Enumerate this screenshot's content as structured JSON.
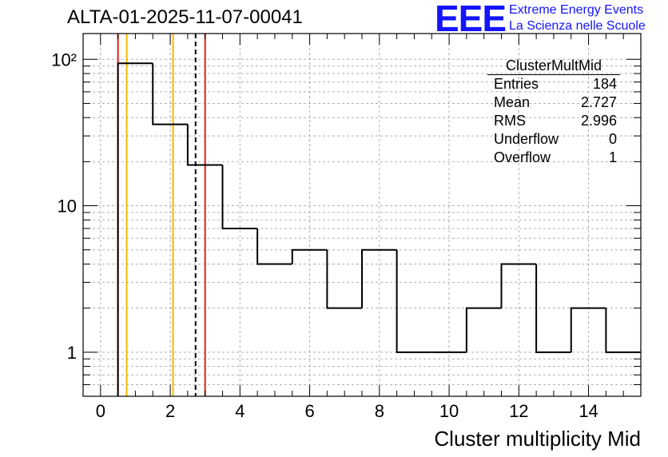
{
  "header": {
    "title": "ALTA-01-2025-11-07-00041",
    "logo_text": "EEE",
    "logo_line1": "Extreme Energy Events",
    "logo_line2": "La Scienza nelle Scuole"
  },
  "stats": {
    "name": "ClusterMultMid",
    "rows": [
      {
        "label": "Entries",
        "value": "184"
      },
      {
        "label": "Mean",
        "value": "2.727"
      },
      {
        "label": "RMS",
        "value": "2.996"
      },
      {
        "label": "Underflow",
        "value": "0"
      },
      {
        "label": "Overflow",
        "value": "1"
      }
    ]
  },
  "chart_data": {
    "type": "histogram",
    "title": "ALTA-01-2025-11-07-00041",
    "xlabel": "Cluster multiplicity Mid",
    "ylabel": "",
    "yscale": "log",
    "xlim": [
      -0.5,
      15.5
    ],
    "ylim": [
      0.5,
      150
    ],
    "grid": true,
    "bin_edges": [
      0.5,
      1.5,
      2.5,
      3.5,
      4.5,
      5.5,
      6.5,
      7.5,
      8.5,
      9.5,
      10.5,
      11.5,
      12.5,
      13.5,
      14.5,
      15.5
    ],
    "counts": [
      94,
      36,
      19,
      7,
      4,
      5,
      2,
      5,
      1,
      1,
      2,
      4,
      1,
      2,
      1
    ],
    "x_ticks": [
      0,
      2,
      4,
      6,
      8,
      10,
      12,
      14
    ],
    "x_tick_labels": [
      "0",
      "2",
      "4",
      "6",
      "8",
      "10",
      "12",
      "14"
    ],
    "y_ticks": [
      1,
      10,
      100
    ],
    "y_tick_labels": [
      "1",
      "10",
      "10²"
    ],
    "vertical_lines": [
      {
        "x": 0.5,
        "color": "#e8201a",
        "style": "solid"
      },
      {
        "x": 0.75,
        "color": "#f5b800",
        "style": "solid"
      },
      {
        "x": 2.08,
        "color": "#f5b800",
        "style": "solid"
      },
      {
        "x": 2.727,
        "color": "#000000",
        "style": "dashed"
      },
      {
        "x": 3.0,
        "color": "#e8201a",
        "style": "solid"
      }
    ]
  }
}
